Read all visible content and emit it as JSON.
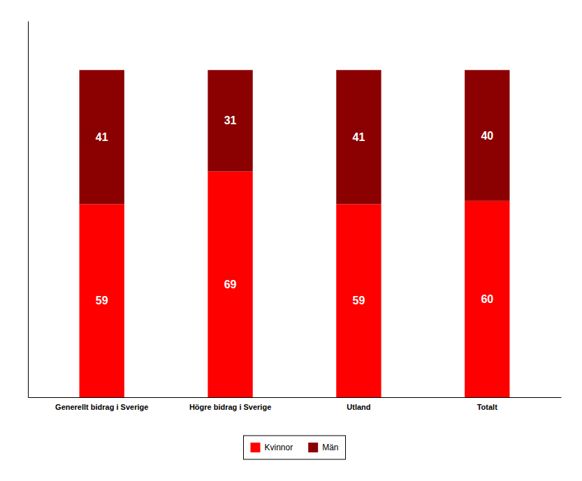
{
  "chart_data": {
    "type": "bar",
    "stacked": true,
    "categories": [
      "Generellt bidrag i Sverige",
      "Högre bidrag i Sverige",
      "Utland",
      "Totalt"
    ],
    "series": [
      {
        "name": "Kvinnor",
        "color": "#FF0000",
        "values": [
          59,
          69,
          59,
          60
        ]
      },
      {
        "name": "Män",
        "color": "#8B0000",
        "values": [
          41,
          31,
          41,
          40
        ]
      }
    ],
    "ylim": [
      0,
      115
    ],
    "yticks": [],
    "grid": false,
    "legend": "bottom",
    "data_labels": true,
    "tick_labels": "x"
  }
}
